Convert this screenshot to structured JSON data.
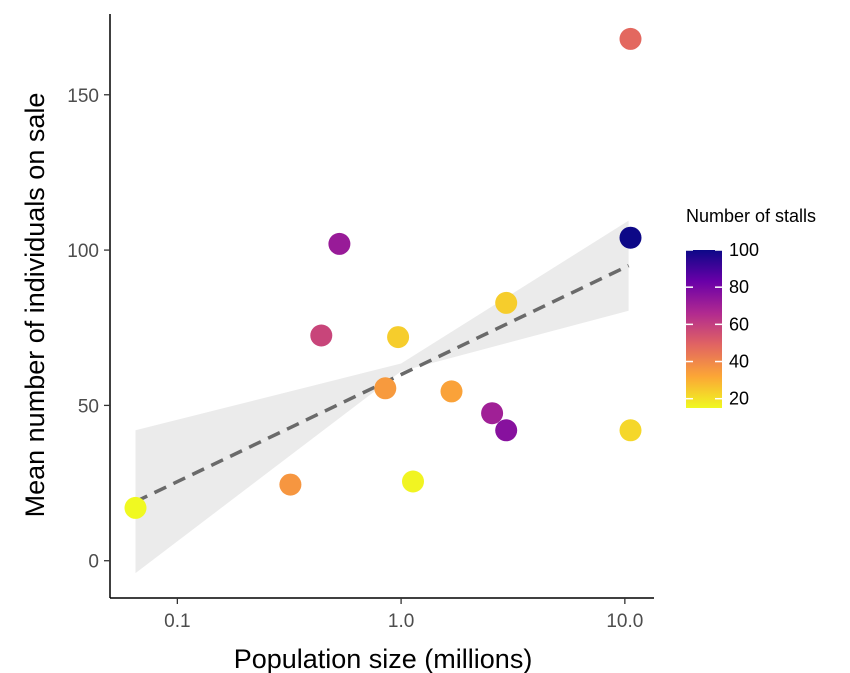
{
  "chart_data": {
    "type": "scatter",
    "xscale": "log",
    "xlabel": "Population size (millions)",
    "ylabel": "Mean number of individuals on sale",
    "xlim": [
      0.05,
      13.5
    ],
    "ylim": [
      -12,
      176
    ],
    "x_ticks": [
      0.1,
      1.0,
      10.0
    ],
    "x_tick_labels": [
      "0.1",
      "1.0",
      "10.0"
    ],
    "y_ticks": [
      0,
      50,
      100,
      150
    ],
    "y_tick_labels": [
      "0",
      "50",
      "100",
      "150"
    ],
    "grid": false,
    "points": [
      {
        "x": 0.065,
        "y": 17,
        "stalls": 15
      },
      {
        "x": 0.32,
        "y": 24.5,
        "stalls": 36
      },
      {
        "x": 0.44,
        "y": 72.5,
        "stalls": 58
      },
      {
        "x": 0.53,
        "y": 102,
        "stalls": 72
      },
      {
        "x": 0.85,
        "y": 55.5,
        "stalls": 35
      },
      {
        "x": 0.97,
        "y": 72,
        "stalls": 24
      },
      {
        "x": 1.13,
        "y": 25.5,
        "stalls": 16
      },
      {
        "x": 1.68,
        "y": 54.5,
        "stalls": 33
      },
      {
        "x": 2.55,
        "y": 47.5,
        "stalls": 70
      },
      {
        "x": 2.95,
        "y": 42,
        "stalls": 76
      },
      {
        "x": 2.95,
        "y": 83,
        "stalls": 24
      },
      {
        "x": 10.6,
        "y": 168,
        "stalls": 48
      },
      {
        "x": 10.6,
        "y": 104,
        "stalls": 100
      },
      {
        "x": 10.6,
        "y": 42,
        "stalls": 22
      }
    ],
    "trend": {
      "style": "dashed",
      "color": "#6a6a6a",
      "x_start": 0.065,
      "y_start": 19,
      "x_end": 10.4,
      "y_end": 95
    },
    "confidence_band": {
      "color": "#ebebeb",
      "x": [
        0.065,
        1.0,
        10.4
      ],
      "lower": [
        -4,
        61,
        80.5
      ],
      "upper": [
        42,
        63.5,
        109.5
      ]
    },
    "legend": {
      "title": "Number of stalls",
      "placement": "right",
      "range": [
        15,
        100
      ],
      "ticks": [
        20,
        40,
        60,
        80,
        100
      ],
      "tick_labels": [
        "20",
        "40",
        "60",
        "80",
        "100"
      ],
      "colormap": "plasma",
      "colors": [
        "#0d0887",
        "#6a00a8",
        "#b12a90",
        "#e16462",
        "#fca636",
        "#f0f921"
      ]
    }
  }
}
